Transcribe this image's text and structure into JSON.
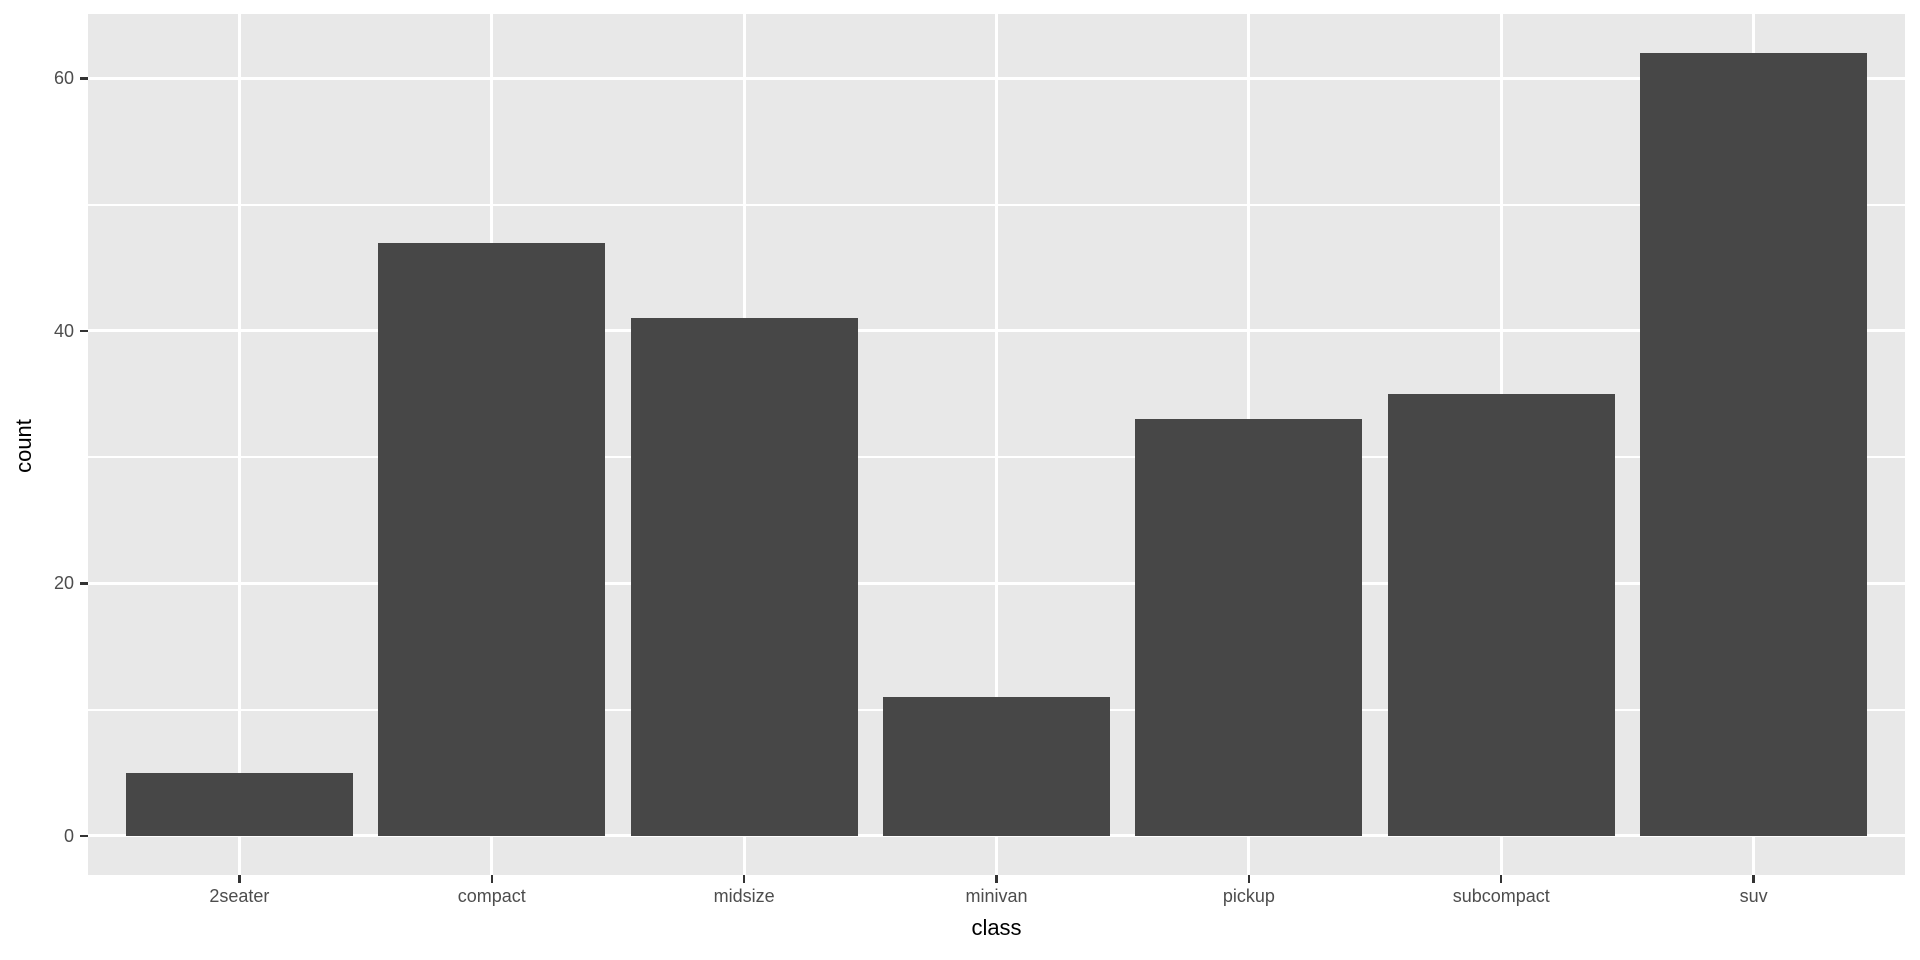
{
  "chart_data": {
    "type": "bar",
    "title": "",
    "xlabel": "class",
    "ylabel": "count",
    "categories": [
      "2seater",
      "compact",
      "midsize",
      "minivan",
      "pickup",
      "subcompact",
      "suv"
    ],
    "values": [
      5,
      47,
      41,
      11,
      33,
      35,
      62
    ],
    "yticks": [
      0,
      20,
      40,
      60
    ],
    "yticks_minor": [
      10,
      30,
      50
    ],
    "ylim": [
      -3.1,
      65.1
    ],
    "grid": "on",
    "legend": "none",
    "bar_width_fraction": 0.9,
    "colors": {
      "bar_fill": "#474747",
      "panel_background": "#E8E8E8",
      "gridline": "#FFFFFF",
      "tick_label": "#4D4D4D",
      "axis_title": "#000000",
      "tick_mark": "#333333",
      "page_background": "#FFFFFF"
    }
  }
}
